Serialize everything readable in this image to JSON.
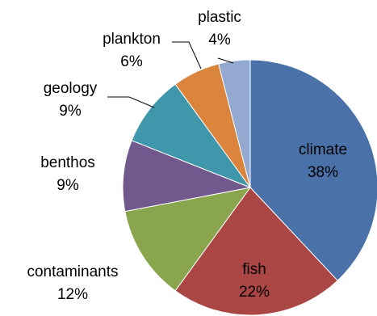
{
  "chart_data": {
    "type": "pie",
    "start_angle_deg": 0,
    "direction": "clockwise",
    "slices": [
      {
        "category": "climate",
        "value": 38,
        "value_label": "38%",
        "color": "#4a72a8",
        "label_position": "inside"
      },
      {
        "category": "fish",
        "value": 22,
        "value_label": "22%",
        "color": "#aa4644",
        "label_position": "inside"
      },
      {
        "category": "contaminants",
        "value": 12,
        "value_label": "12%",
        "color": "#89a54e",
        "label_position": "outside"
      },
      {
        "category": "benthos",
        "value": 9,
        "value_label": "9%",
        "color": "#71598e",
        "label_position": "outside"
      },
      {
        "category": "geology",
        "value": 9,
        "value_label": "9%",
        "color": "#4097ab",
        "label_position": "outside-leader"
      },
      {
        "category": "plankton",
        "value": 6,
        "value_label": "6%",
        "color": "#db843d",
        "label_position": "outside-leader"
      },
      {
        "category": "plastic",
        "value": 4,
        "value_label": "4%",
        "color": "#93a9cf",
        "label_position": "outside-leader"
      }
    ],
    "legend": "none"
  }
}
